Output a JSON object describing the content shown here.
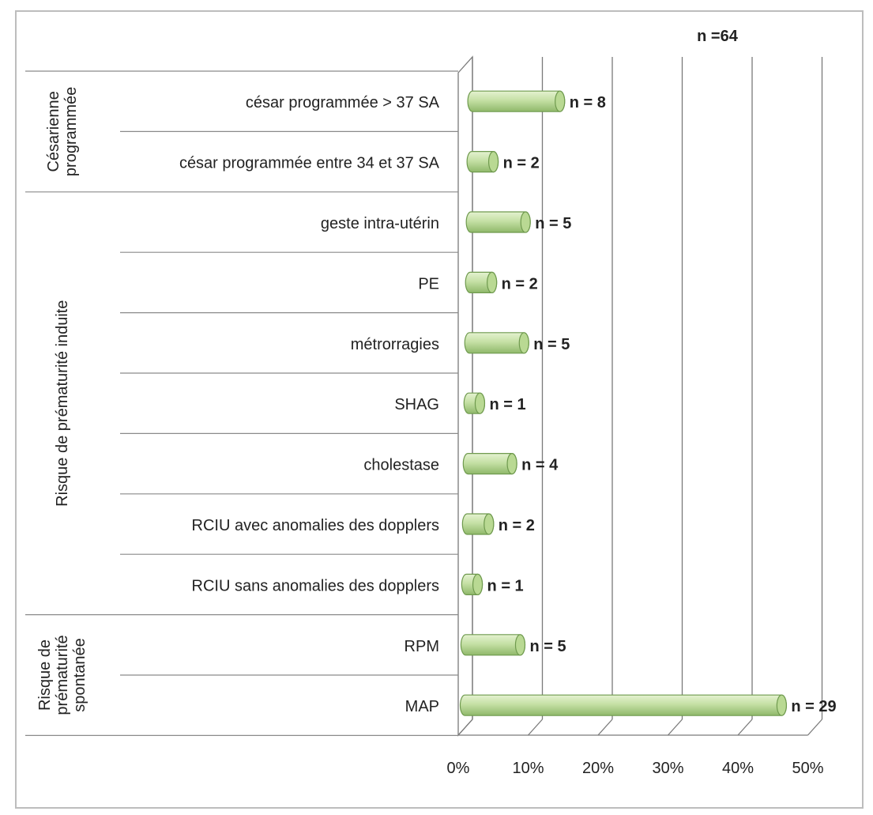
{
  "chart_data": {
    "type": "bar",
    "orientation": "horizontal",
    "title": "n =64",
    "groups": [
      {
        "label": "Césarienne programmée",
        "categories": [
          "césar programmée > 37 SA",
          "césar programmée entre 34 et 37 SA"
        ]
      },
      {
        "label": "Risque de prématurité induite",
        "categories": [
          "geste intra-utérin",
          "PE",
          "métrorragies",
          "SHAG",
          "cholestase",
          "RCIU avec anomalies des dopplers",
          "RCIU sans anomalies des dopplers"
        ]
      },
      {
        "label": "Risque de prématurité spontanée",
        "categories": [
          "RPM",
          "MAP"
        ]
      }
    ],
    "categories": [
      "césar programmée > 37 SA",
      "césar programmée entre 34 et 37 SA",
      "geste intra-utérin",
      "PE",
      "métrorragies",
      "SHAG",
      "cholestase",
      "RCIU avec anomalies des dopplers",
      "RCIU sans anomalies des dopplers",
      "RPM",
      "MAP"
    ],
    "values": [
      12.5,
      3.1,
      7.8,
      3.1,
      7.8,
      1.6,
      6.3,
      3.1,
      1.6,
      7.8,
      45.3
    ],
    "data_labels": [
      "n = 8",
      "n = 2",
      "n = 5",
      "n = 2",
      "n = 5",
      "n = 1",
      "n = 4",
      "n = 2",
      "n = 1",
      "n = 5",
      "n = 29"
    ],
    "x_ticks": [
      "0%",
      "10%",
      "20%",
      "30%",
      "40%",
      "50%"
    ],
    "xlim": [
      0,
      50
    ],
    "grid": true,
    "legend": "none",
    "bar_color": "#c5e0a5"
  }
}
